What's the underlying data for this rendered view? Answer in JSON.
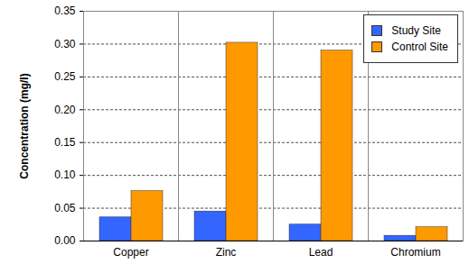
{
  "chart_data": {
    "type": "bar",
    "ylabel": "Concentration (mg/l)",
    "categories": [
      "Copper",
      "Zinc",
      "Lead",
      "Chromium"
    ],
    "series": [
      {
        "name": "Study Site",
        "color": "#3366FF",
        "values": [
          0.036,
          0.045,
          0.025,
          0.008
        ]
      },
      {
        "name": "Control Site",
        "color": "#FF9900",
        "values": [
          0.076,
          0.302,
          0.29,
          0.021
        ]
      }
    ],
    "ylim": [
      0,
      0.35
    ],
    "yticks": [
      {
        "value": 0,
        "label": "0.00"
      },
      0.05,
      {
        "value": 0.1,
        "label": "0.10"
      },
      0.15,
      {
        "value": 0.2,
        "label": "0.20"
      },
      0.25,
      {
        "value": 0.3,
        "label": "0.30"
      },
      0.35
    ],
    "grid": true,
    "legend": "top-right"
  }
}
